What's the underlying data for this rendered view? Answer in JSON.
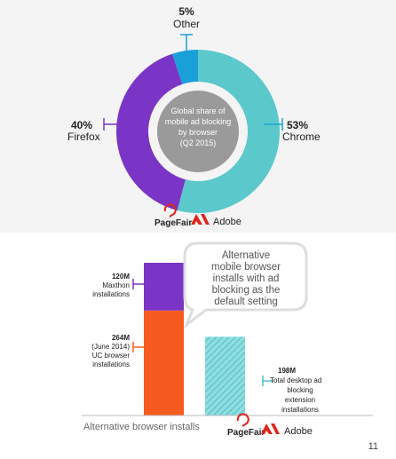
{
  "donut_logos": {
    "pagefair": "PageFair",
    "adobe": "Adobe"
  },
  "bars_logos": {
    "pagefair": "PageFair",
    "adobe": "Adobe"
  },
  "page_number": "11",
  "chart_data": [
    {
      "type": "pie",
      "donut": true,
      "center_label": [
        "Global share of",
        "mobile ad blocking",
        "by browser",
        "(Q2 2015)"
      ],
      "slices": [
        {
          "name": "Chrome",
          "value": 53,
          "label": "53%",
          "color": "#5bc8cc"
        },
        {
          "name": "Firefox",
          "value": 40,
          "label": "40%",
          "color": "#7a35c6"
        },
        {
          "name": "Other",
          "value": 5,
          "label": "5%",
          "color": "#1aa0d8"
        }
      ]
    },
    {
      "type": "bar",
      "stacked": true,
      "xlabel": "Alternative browser installs",
      "callout": [
        "Alternative",
        "mobile browser",
        "installs with ad",
        "blocking as the",
        "default setting"
      ],
      "bars": [
        {
          "segments": [
            {
              "value": 264,
              "label": [
                "264M",
                "(June 2014)",
                "UC browser",
                "installations"
              ],
              "color": "#f55a1e"
            },
            {
              "value": 120,
              "label": [
                "120M",
                "Maxthon",
                "installations"
              ],
              "color": "#7a35c6"
            }
          ]
        },
        {
          "segments": [
            {
              "value": 198,
              "label": [
                "198M",
                "Total desktop ad",
                "blocking",
                "extension",
                "installations"
              ],
              "color": "#5bc8cc",
              "pattern": "hatched"
            }
          ]
        }
      ]
    }
  ]
}
